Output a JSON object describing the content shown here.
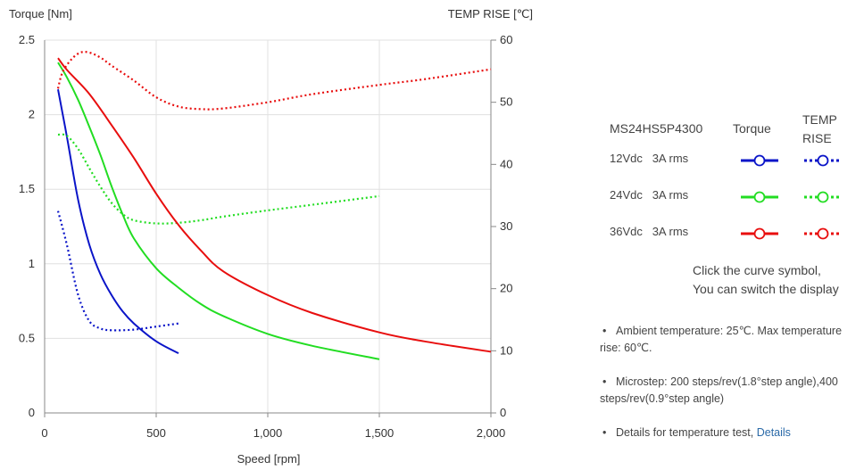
{
  "chart_data": {
    "type": "line",
    "title": "",
    "xlabel": "Speed [rpm]",
    "ylabel": "Torque  [Nm]",
    "y2label": "TEMP RISE [℃]",
    "xlim": [
      0,
      2000
    ],
    "ylim": [
      0,
      2.5
    ],
    "y2lim": [
      0,
      60
    ],
    "x_ticks": [
      "0",
      "500",
      "1,000",
      "1,500",
      "2,000"
    ],
    "y_ticks": [
      "0",
      "0.5",
      "1",
      "1.5",
      "2",
      "2.5"
    ],
    "y2_ticks": [
      "0",
      "10",
      "20",
      "30",
      "40",
      "50",
      "60"
    ],
    "grid": true,
    "series": [
      {
        "name": "12Vdc 3A rms",
        "kind": "Torque",
        "axis": "left",
        "color": "#0a14c8",
        "dash": "solid",
        "points": [
          [
            60,
            2.17
          ],
          [
            100,
            1.85
          ],
          [
            150,
            1.43
          ],
          [
            200,
            1.13
          ],
          [
            250,
            0.93
          ],
          [
            300,
            0.79
          ],
          [
            350,
            0.68
          ],
          [
            400,
            0.6
          ],
          [
            500,
            0.48
          ],
          [
            600,
            0.4
          ]
        ]
      },
      {
        "name": "12Vdc 3A rms",
        "kind": "TEMP RISE",
        "axis": "right",
        "color": "#0a14c8",
        "dash": "dotted",
        "points": [
          [
            60,
            32.5
          ],
          [
            100,
            27.0
          ],
          [
            150,
            19.0
          ],
          [
            200,
            14.8
          ],
          [
            250,
            13.6
          ],
          [
            300,
            13.3
          ],
          [
            400,
            13.4
          ],
          [
            500,
            13.9
          ],
          [
            600,
            14.4
          ]
        ]
      },
      {
        "name": "24Vdc 3A rms",
        "kind": "Torque",
        "axis": "left",
        "color": "#22dd22",
        "dash": "solid",
        "points": [
          [
            60,
            2.35
          ],
          [
            100,
            2.25
          ],
          [
            150,
            2.1
          ],
          [
            200,
            1.92
          ],
          [
            250,
            1.73
          ],
          [
            300,
            1.52
          ],
          [
            350,
            1.33
          ],
          [
            400,
            1.17
          ],
          [
            500,
            0.97
          ],
          [
            600,
            0.84
          ],
          [
            700,
            0.73
          ],
          [
            800,
            0.65
          ],
          [
            1000,
            0.53
          ],
          [
            1200,
            0.45
          ],
          [
            1500,
            0.36
          ]
        ]
      },
      {
        "name": "24Vdc 3A rms",
        "kind": "TEMP RISE",
        "axis": "right",
        "color": "#22dd22",
        "dash": "dotted",
        "points": [
          [
            60,
            44.8
          ],
          [
            100,
            44.6
          ],
          [
            150,
            42.5
          ],
          [
            200,
            39.4
          ],
          [
            250,
            36.4
          ],
          [
            300,
            33.8
          ],
          [
            350,
            32.0
          ],
          [
            400,
            31.0
          ],
          [
            500,
            30.5
          ],
          [
            600,
            30.6
          ],
          [
            700,
            31.0
          ],
          [
            800,
            31.6
          ],
          [
            1000,
            32.6
          ],
          [
            1200,
            33.5
          ],
          [
            1500,
            34.9
          ]
        ]
      },
      {
        "name": "36Vdc 3A rms",
        "kind": "Torque",
        "axis": "left",
        "color": "#e80e0e",
        "dash": "solid",
        "points": [
          [
            60,
            2.38
          ],
          [
            100,
            2.3
          ],
          [
            200,
            2.14
          ],
          [
            300,
            1.93
          ],
          [
            400,
            1.71
          ],
          [
            500,
            1.47
          ],
          [
            600,
            1.26
          ],
          [
            700,
            1.09
          ],
          [
            800,
            0.95
          ],
          [
            1000,
            0.79
          ],
          [
            1200,
            0.67
          ],
          [
            1500,
            0.54
          ],
          [
            1700,
            0.48
          ],
          [
            2000,
            0.41
          ]
        ]
      },
      {
        "name": "36Vdc 3A rms",
        "kind": "TEMP RISE",
        "axis": "right",
        "color": "#e80e0e",
        "dash": "dotted",
        "points": [
          [
            60,
            52.2
          ],
          [
            80,
            54.8
          ],
          [
            120,
            56.9
          ],
          [
            160,
            58.0
          ],
          [
            200,
            58.0
          ],
          [
            250,
            57.2
          ],
          [
            300,
            55.9
          ],
          [
            400,
            53.5
          ],
          [
            500,
            50.8
          ],
          [
            600,
            49.3
          ],
          [
            700,
            48.9
          ],
          [
            800,
            49.0
          ],
          [
            1000,
            50.0
          ],
          [
            1200,
            51.3
          ],
          [
            1500,
            52.8
          ],
          [
            1700,
            53.7
          ],
          [
            2000,
            55.3
          ]
        ]
      }
    ]
  },
  "legend": {
    "model": "MS24HS5P4300",
    "col_torque": "Torque",
    "col_temp_line1": "TEMP",
    "col_temp_line2": "RISE",
    "rows": [
      {
        "voltage": "12Vdc",
        "current": "3A rms",
        "color": "#0a14c8"
      },
      {
        "voltage": "24Vdc",
        "current": "3A rms",
        "color": "#22dd22"
      },
      {
        "voltage": "36Vdc",
        "current": "3A rms",
        "color": "#e80e0e"
      }
    ],
    "hint_line1": "Click the curve symbol,",
    "hint_line2": "You can switch the display"
  },
  "notes": {
    "ambient": "Ambient temperature: 25℃.   Max temperature rise: 60℃.",
    "microstep": "Microstep: 200 steps/rev(1.8°step angle),400 steps/rev(0.9°step angle)",
    "details_text": "Details for temperature test,",
    "details_link": "Details"
  }
}
